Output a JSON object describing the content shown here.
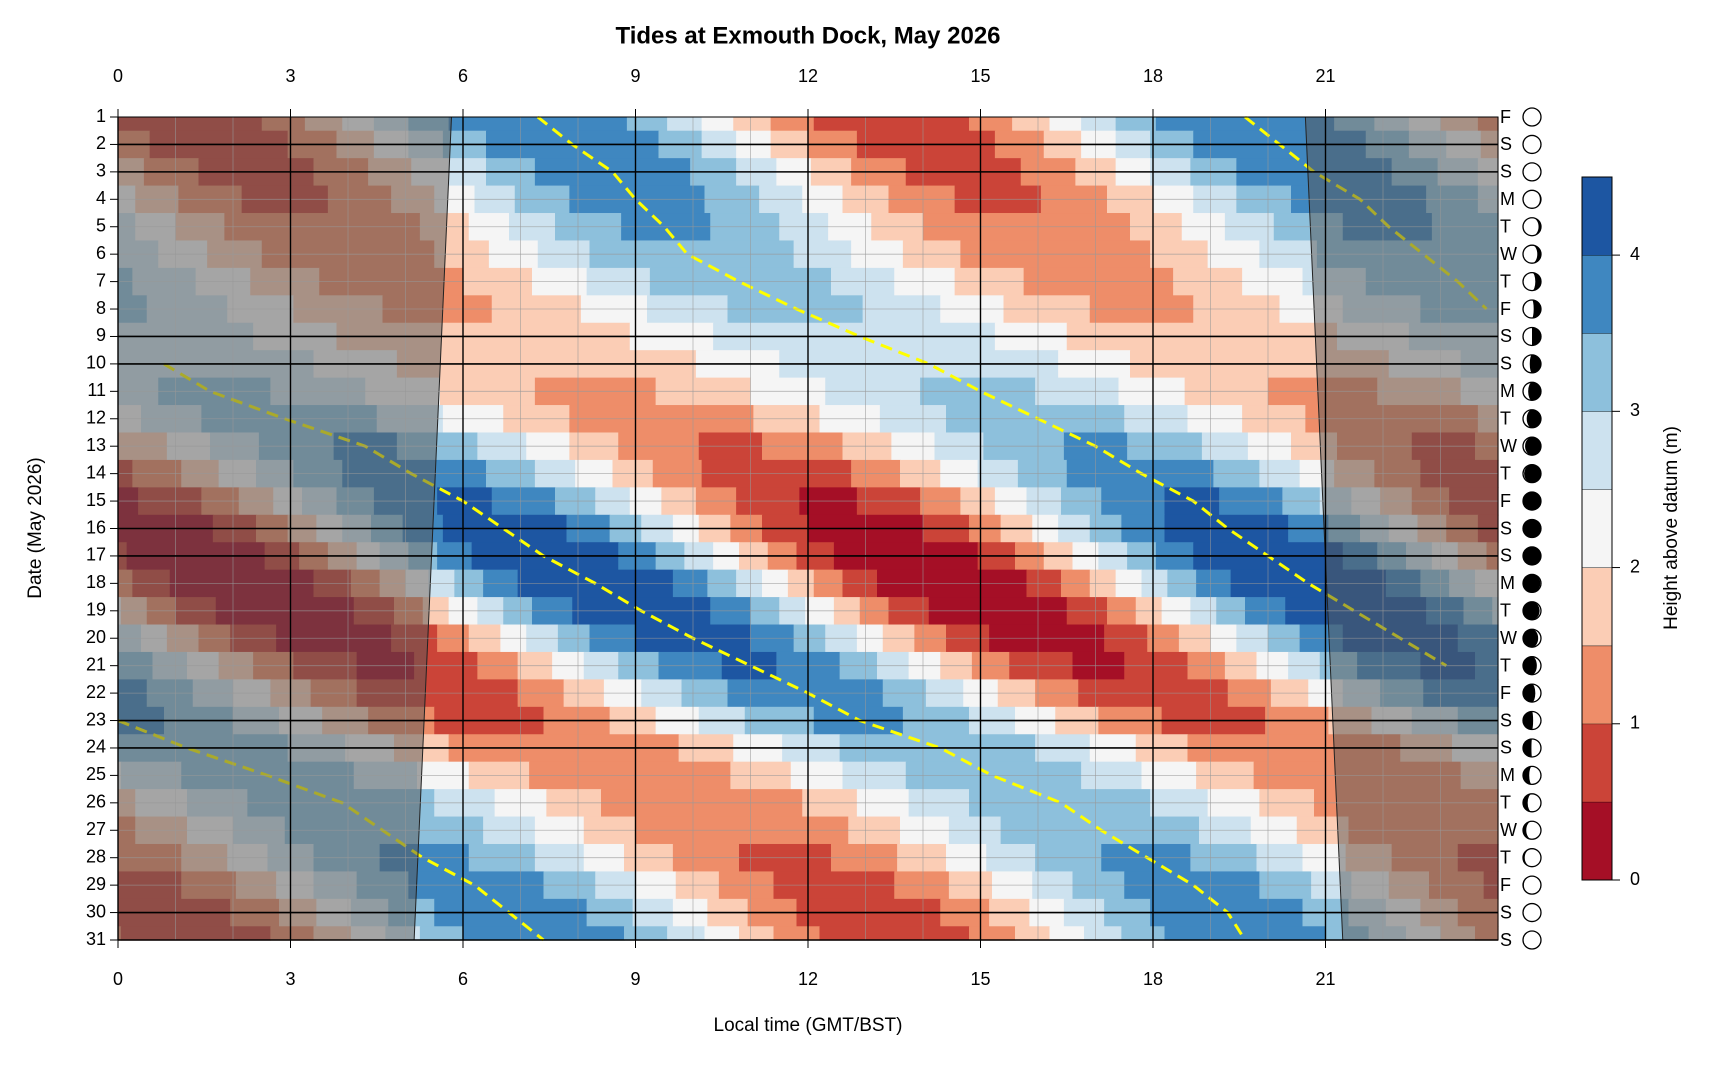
{
  "chart_data": {
    "type": "contour",
    "title": "Tides at Exmouth Dock, May 2026",
    "xlabel": "Local time (GMT/BST)",
    "ylabel": "Date (May 2026)",
    "xlim": [
      0,
      24
    ],
    "xticks": [
      0,
      3,
      6,
      9,
      12,
      15,
      18,
      21
    ],
    "minor_xticks": [
      0,
      1,
      2,
      3,
      4,
      5,
      6,
      7,
      8,
      9,
      10,
      11,
      12,
      13,
      14,
      15,
      16,
      17,
      18,
      19,
      20,
      21,
      22,
      23,
      24
    ],
    "ylim": [
      1,
      31
    ],
    "y_reversed": true,
    "yticks": [
      1,
      2,
      3,
      4,
      5,
      6,
      7,
      8,
      9,
      10,
      11,
      12,
      13,
      14,
      15,
      16,
      17,
      18,
      19,
      20,
      21,
      22,
      23,
      24,
      25,
      26,
      27,
      28,
      29,
      30,
      31
    ],
    "weekdays": [
      "F",
      "S",
      "S",
      "M",
      "T",
      "W",
      "T",
      "F",
      "S",
      "S",
      "M",
      "T",
      "W",
      "T",
      "F",
      "S",
      "S",
      "M",
      "T",
      "W",
      "T",
      "F",
      "S",
      "S",
      "M",
      "T",
      "W",
      "T",
      "F",
      "S",
      "S"
    ],
    "highlight_days": [
      2,
      3,
      9,
      10,
      16,
      17,
      23,
      24,
      30,
      31
    ],
    "moon_phase": [
      0.48,
      0.52,
      0.55,
      0.58,
      0.62,
      0.65,
      0.69,
      0.72,
      0.75,
      0.79,
      0.82,
      0.85,
      0.89,
      0.92,
      0.96,
      0.99,
      0.02,
      0.06,
      0.09,
      0.13,
      0.16,
      0.19,
      0.23,
      0.26,
      0.3,
      0.33,
      0.36,
      0.4,
      0.43,
      0.47,
      0.5
    ],
    "high_water": {
      "color": "#ffff00",
      "lines": [
        {
          "x": [
            7.3,
            7.9,
            8.6,
            9.0,
            9.5,
            9.9,
            10.8,
            11.8,
            12.9,
            14.1,
            15.0,
            16.0,
            17.0,
            17.8,
            18.7,
            19.3,
            20.0,
            20.7,
            21.5,
            22.3,
            23.1
          ],
          "y": [
            1,
            2,
            3,
            4,
            5,
            6,
            7,
            8,
            9,
            10,
            11,
            12,
            13,
            14,
            15,
            16,
            17,
            18,
            19,
            20,
            21
          ]
        },
        {
          "x": [
            0.8,
            1.6,
            2.9,
            4.3,
            5.1,
            6.0,
            6.7,
            7.4,
            8.3,
            9.1,
            10.0,
            11.0,
            12.0,
            12.9,
            14.3,
            15.2,
            16.4,
            17.1,
            17.9,
            18.7,
            19.3,
            19.6
          ],
          "y": [
            10,
            11,
            12,
            13,
            14,
            15,
            16,
            17,
            18,
            19,
            20,
            21,
            22,
            23,
            24,
            25,
            26,
            27,
            28,
            29,
            30,
            31
          ]
        },
        {
          "x": [
            19.6,
            20.2,
            20.8,
            21.6,
            22.1,
            22.7,
            23.3,
            23.8
          ],
          "y": [
            1,
            2,
            3,
            4,
            5,
            6,
            7,
            8
          ]
        },
        {
          "x": [
            0.0,
            1.2,
            2.6,
            3.9,
            4.6,
            5.3,
            6.2,
            6.8,
            7.4
          ],
          "y": [
            23,
            24,
            25,
            26,
            27,
            28,
            29,
            30,
            31
          ]
        }
      ]
    },
    "high_height": [
      4.0,
      3.95,
      3.85,
      3.75,
      3.6,
      3.45,
      3.3,
      3.15,
      3.0,
      3.0,
      3.1,
      3.3,
      3.55,
      3.8,
      4.05,
      4.3,
      4.45,
      4.5,
      4.4,
      4.25,
      4.05,
      3.85,
      3.6,
      3.4,
      3.3,
      3.35,
      3.45,
      3.6,
      3.75,
      3.85,
      3.9
    ],
    "low_height": [
      0.6,
      0.7,
      0.8,
      0.9,
      1.0,
      1.15,
      1.3,
      1.4,
      1.5,
      1.5,
      1.4,
      1.2,
      0.95,
      0.7,
      0.45,
      0.25,
      0.1,
      0.05,
      0.1,
      0.25,
      0.45,
      0.65,
      0.85,
      1.0,
      1.1,
      1.1,
      1.0,
      0.9,
      0.8,
      0.7,
      0.65
    ],
    "daylight": {
      "days": [
        1,
        31
      ],
      "sunrise": [
        5.8,
        5.15
      ],
      "sunset": [
        20.65,
        21.3
      ],
      "night_color": "#555555"
    },
    "colorbar": {
      "label": "Height above datum (m)",
      "levels": [
        0,
        0.5,
        1,
        1.5,
        2,
        2.5,
        3,
        3.5,
        4,
        4.5
      ],
      "colors": [
        "#a50f26",
        "#cb4438",
        "#ee8d69",
        "#fbcdb5",
        "#f5f5f5",
        "#cde2ef",
        "#8dc0dc",
        "#3f87c0",
        "#1d56a2"
      ],
      "ticks": [
        0,
        1,
        2,
        3,
        4
      ]
    }
  }
}
